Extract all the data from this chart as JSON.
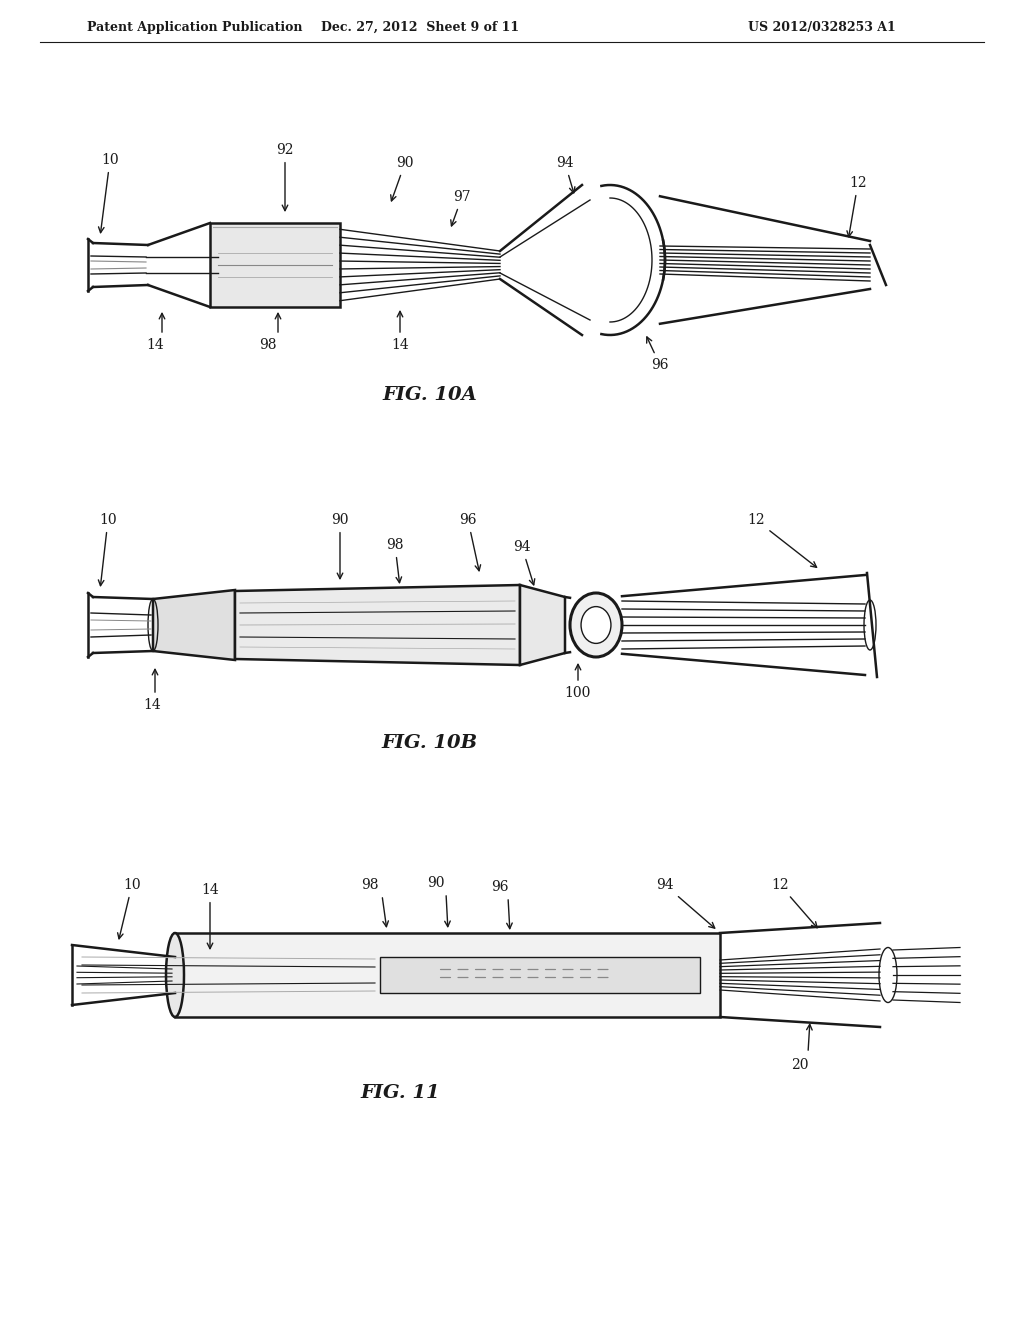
{
  "bg_color": "#ffffff",
  "line_color": "#1a1a1a",
  "header_left": "Patent Application Publication",
  "header_mid": "Dec. 27, 2012  Sheet 9 of 11",
  "header_right": "US 2012/0328253 A1",
  "fig10a_label": "FIG. 10A",
  "fig10b_label": "FIG. 10B",
  "fig11_label": "FIG. 11"
}
